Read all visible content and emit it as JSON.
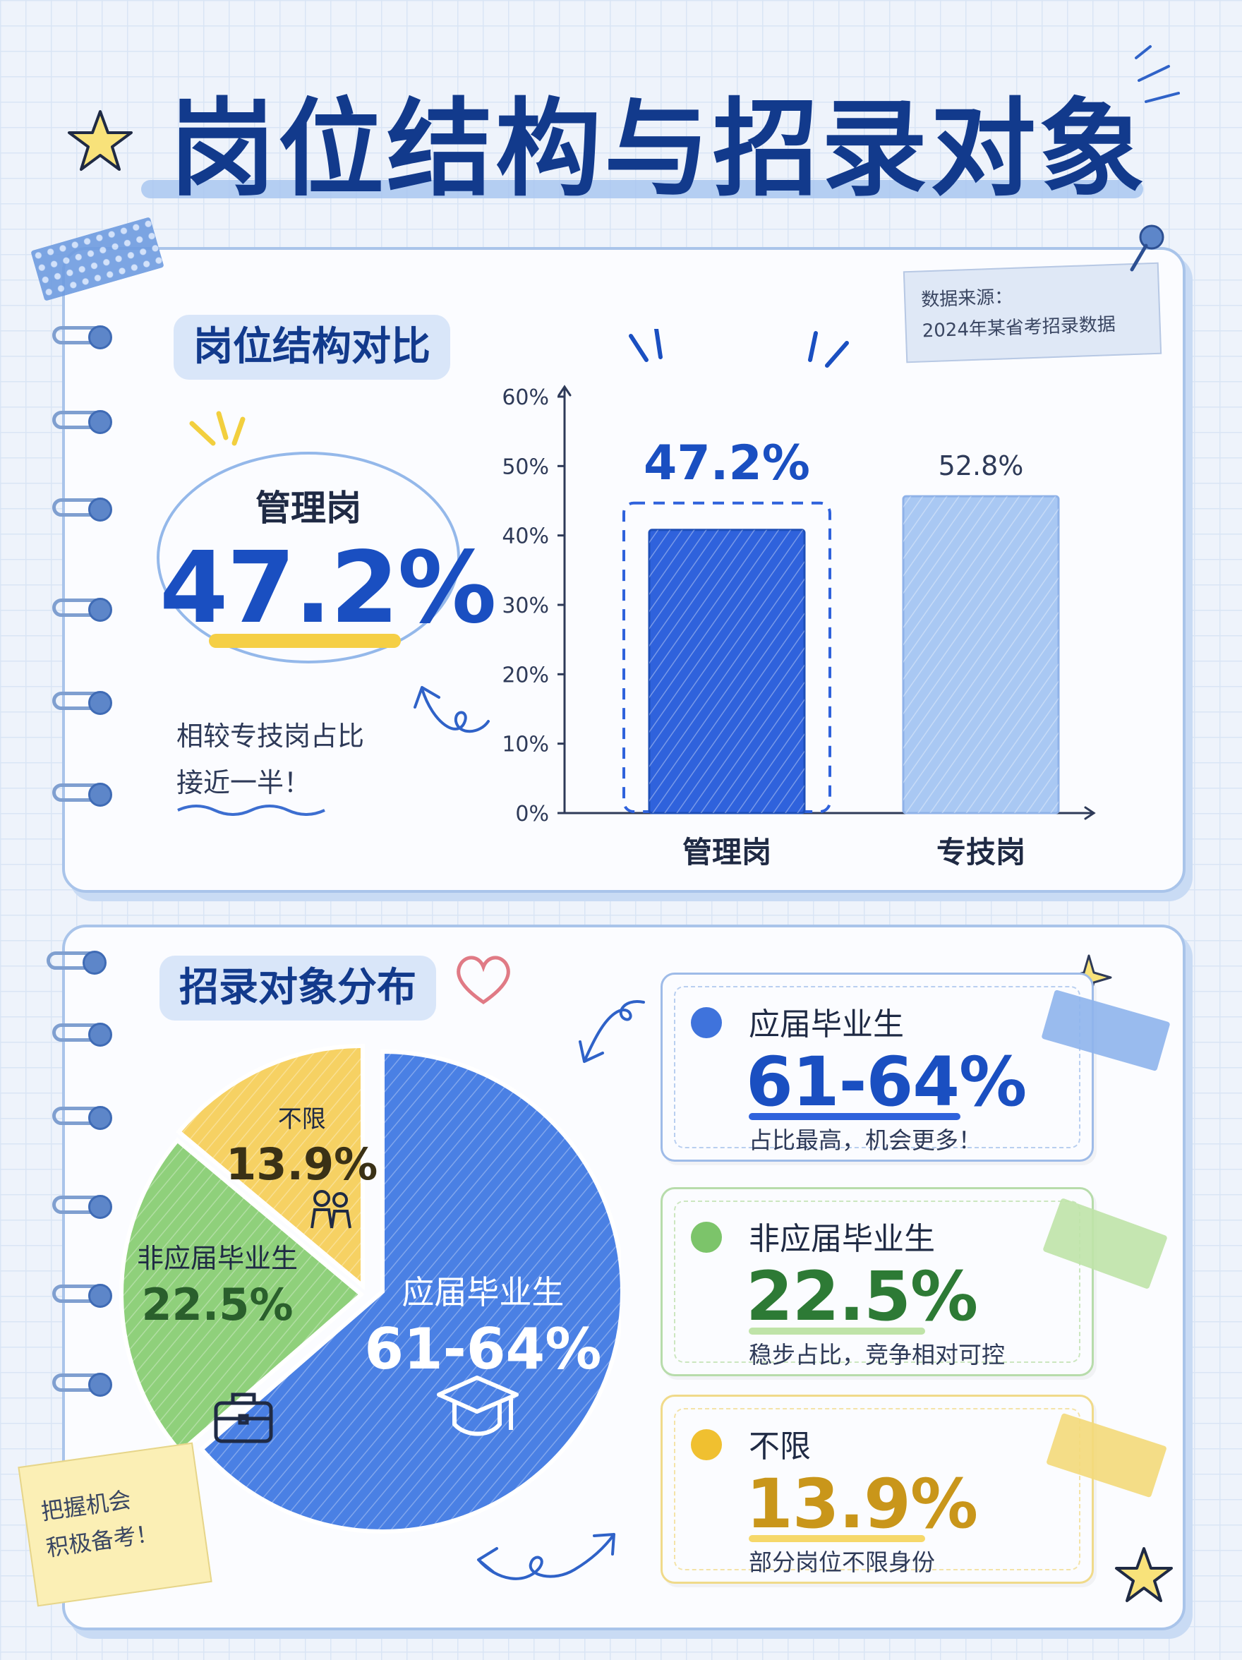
{
  "title": "岗位结构与招录对象",
  "section1": {
    "header": "岗位结构对比",
    "source_label": "数据来源：",
    "source_text": "2024年某省考招录数据",
    "callout_label": "管理岗",
    "callout_value": "47.2%",
    "note_line1": "相较专技岗占比",
    "note_line2": "接近一半！"
  },
  "section2": {
    "header": "招录对象分布",
    "sticky_line1": "把握机会",
    "sticky_line2": "积极备考！",
    "cards": [
      {
        "name": "应届毕业生",
        "value": "61-64%",
        "desc": "占比最高，机会更多！",
        "color": "#3f73dc",
        "text_color": "#1a4fc1"
      },
      {
        "name": "非应届毕业生",
        "value": "22.5%",
        "desc": "稳步占比，竞争相对可控",
        "color": "#7cc46a",
        "text_color": "#2d7a35"
      },
      {
        "name": "不限",
        "value": "13.9%",
        "desc": "部分岗位不限身份",
        "color": "#f0c030",
        "text_color": "#c9961a"
      }
    ]
  },
  "chart_data": [
    {
      "type": "bar",
      "categories": [
        "管理岗",
        "专技岗"
      ],
      "values": [
        47.2,
        52.8
      ],
      "value_labels": [
        "47.2%",
        "52.8%"
      ],
      "yticks": [
        "0%",
        "10%",
        "20%",
        "30%",
        "40%",
        "50%",
        "60%"
      ],
      "ylim": [
        0,
        60
      ],
      "colors": [
        "#2f62dc",
        "#a9c8f3"
      ]
    },
    {
      "type": "pie",
      "slices": [
        {
          "label": "应届毕业生",
          "value_label": "61-64%",
          "value": 63.6,
          "color": "#4a80e4"
        },
        {
          "label": "非应届毕业生",
          "value_label": "22.5%",
          "value": 22.5,
          "color": "#8fd07b"
        },
        {
          "label": "不限",
          "value_label": "13.9%",
          "value": 13.9,
          "color": "#f6d163"
        }
      ]
    }
  ]
}
